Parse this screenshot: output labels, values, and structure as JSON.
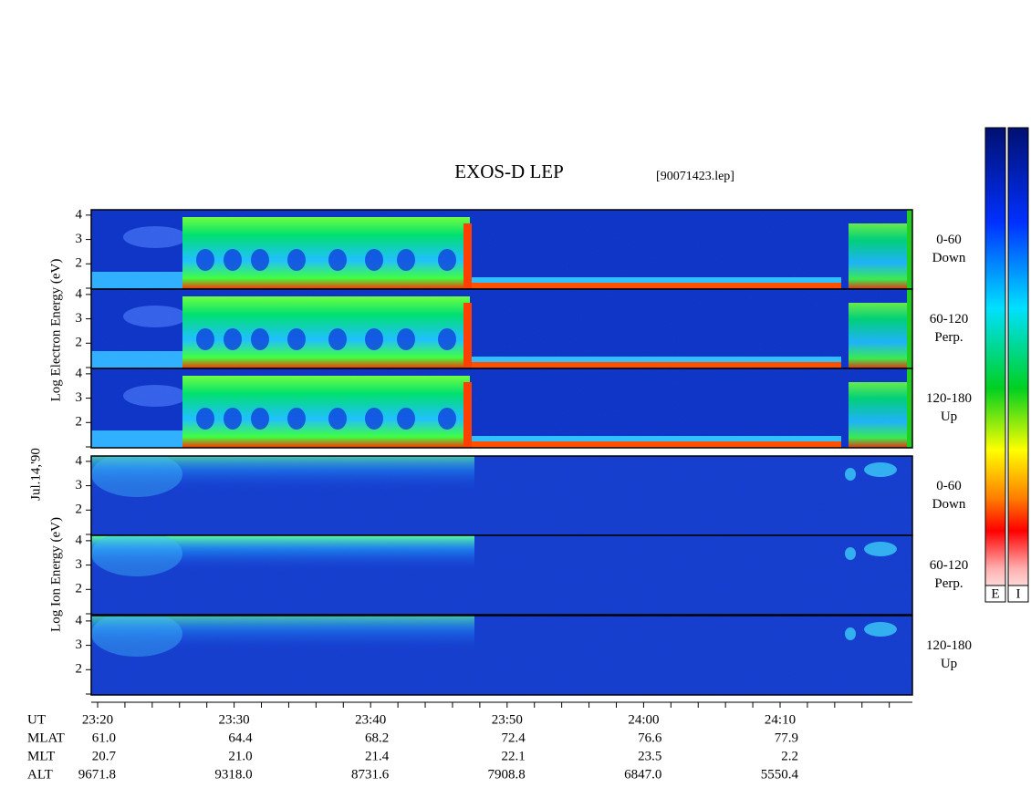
{
  "title": "EXOS-D LEP",
  "file": "[90071423.lep]",
  "date": "Jul.14,'90",
  "electron_axis": "Log Electron Energy (eV)",
  "ion_axis": "Log Ion Energy (eV)",
  "yticks": [
    2,
    3,
    4
  ],
  "panels": [
    {
      "angle": "0-60",
      "direction": "Down"
    },
    {
      "angle": "60-120",
      "direction": "Perp."
    },
    {
      "angle": "120-180",
      "direction": "Up"
    },
    {
      "angle": "0-60",
      "direction": "Down"
    },
    {
      "angle": "60-120",
      "direction": "Perp."
    },
    {
      "angle": "120-180",
      "direction": "Up"
    }
  ],
  "ephemeris": [
    {
      "label": "UT",
      "values": [
        "23:20",
        "23:30",
        "23:40",
        "23:50",
        "24:00",
        "24:10"
      ]
    },
    {
      "label": "MLAT",
      "values": [
        "61.0",
        "64.4",
        "68.2",
        "72.4",
        "76.6",
        "77.9"
      ]
    },
    {
      "label": "MLT",
      "values": [
        "20.7",
        "21.0",
        "21.4",
        "22.1",
        "23.5",
        "2.2"
      ]
    },
    {
      "label": "ALT",
      "values": [
        "9671.8",
        "9318.0",
        "8731.6",
        "7908.8",
        "6847.0",
        "5550.4"
      ]
    }
  ],
  "colorbar": [
    "E",
    "I"
  ]
}
